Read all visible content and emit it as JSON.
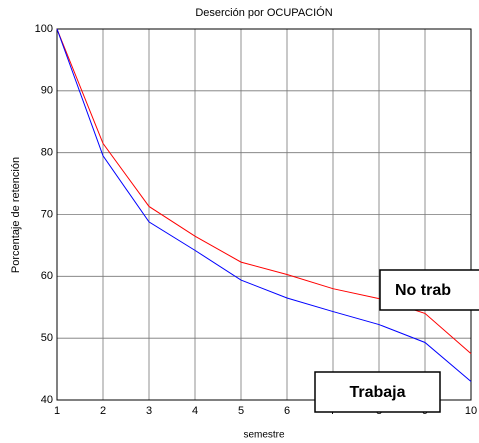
{
  "chart_data": {
    "type": "line",
    "title": "Deserción por OCUPACIÓN",
    "xlabel": "semestre",
    "ylabel": "Porcentaje de retención",
    "x": [
      1,
      2,
      3,
      4,
      5,
      6,
      7,
      8,
      9,
      10
    ],
    "series": [
      {
        "name": "No trab",
        "color": "#ff0000",
        "values": [
          100,
          81.5,
          71.3,
          66.5,
          62.3,
          60.3,
          58,
          56.4,
          54,
          47.5
        ]
      },
      {
        "name": "Trabaja",
        "color": "#0000ff",
        "values": [
          100,
          79.5,
          68.8,
          64.2,
          59.4,
          56.5,
          54.3,
          52.2,
          49.3,
          43
        ]
      }
    ],
    "xlim": [
      1,
      10
    ],
    "xticks": [
      1,
      2,
      3,
      4,
      5,
      6,
      7,
      8,
      9,
      10
    ],
    "ylim": [
      40,
      100
    ],
    "yticks": [
      40,
      50,
      60,
      70,
      80,
      90,
      100
    ],
    "grid": true
  }
}
